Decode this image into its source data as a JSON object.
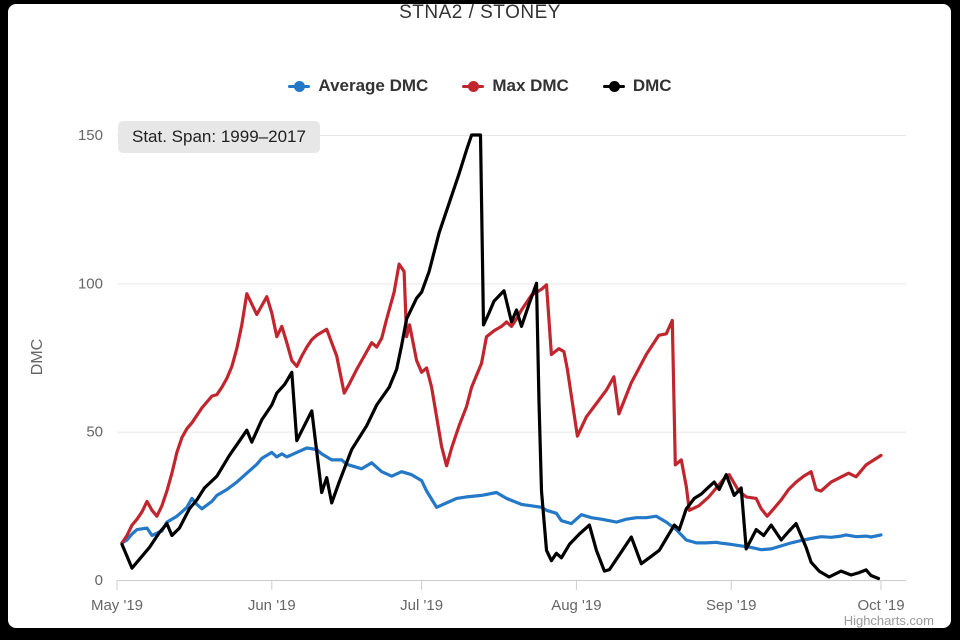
{
  "title": "STNA2 / STONEY",
  "stat_span_label": "Stat. Span: 1999–2017",
  "credits": "Highcharts.com",
  "colors": {
    "frame": "#000000",
    "background": "#ffffff",
    "grid": "#e6e6e6",
    "axis": "#cccccc",
    "tick_text": "#666666",
    "title_text": "#333333",
    "stat_label_bg": "#e7e7e7"
  },
  "chart_data": {
    "type": "line",
    "title": "STNA2 / STONEY",
    "xlabel": "",
    "ylabel": "DMC",
    "ylim": [
      0,
      150
    ],
    "y_ticks": [
      0,
      50,
      100,
      150
    ],
    "x_unit": "days since May 1 2019",
    "x_ticks": [
      {
        "day": 0,
        "label": "May '19"
      },
      {
        "day": 31,
        "label": "Jun '19"
      },
      {
        "day": 61,
        "label": "Jul '19"
      },
      {
        "day": 92,
        "label": "Aug '19"
      },
      {
        "day": 123,
        "label": "Sep '19"
      },
      {
        "day": 153,
        "label": "Oct '19"
      }
    ],
    "grid": "horizontal",
    "legend_position": "top",
    "series": [
      {
        "name": "Average DMC",
        "color": "#2478c8",
        "points": [
          [
            1,
            12.5
          ],
          [
            2,
            13.5
          ],
          [
            3,
            15.5
          ],
          [
            4,
            17
          ],
          [
            6,
            17.5
          ],
          [
            7,
            15
          ],
          [
            9,
            16.5
          ],
          [
            10,
            19.5
          ],
          [
            12,
            21.5
          ],
          [
            13,
            23
          ],
          [
            14,
            24.5
          ],
          [
            15,
            27.5
          ],
          [
            16,
            25.5
          ],
          [
            17,
            24
          ],
          [
            19,
            26.5
          ],
          [
            20,
            28.5
          ],
          [
            22,
            30.5
          ],
          [
            24,
            33
          ],
          [
            26,
            36
          ],
          [
            28,
            39
          ],
          [
            29,
            41
          ],
          [
            31,
            43
          ],
          [
            32,
            41.5
          ],
          [
            33,
            42.5
          ],
          [
            34,
            41.5
          ],
          [
            36,
            43
          ],
          [
            38,
            44.5
          ],
          [
            40,
            44
          ],
          [
            41,
            42.5
          ],
          [
            43,
            40.5
          ],
          [
            45,
            40.5
          ],
          [
            46,
            39
          ],
          [
            49,
            37.5
          ],
          [
            51,
            39.5
          ],
          [
            53,
            36.5
          ],
          [
            55,
            35
          ],
          [
            57,
            36.5
          ],
          [
            59,
            35.5
          ],
          [
            61,
            33.5
          ],
          [
            62,
            30
          ],
          [
            64,
            24.5
          ],
          [
            66,
            26
          ],
          [
            68,
            27.5
          ],
          [
            70,
            28
          ],
          [
            73,
            28.5
          ],
          [
            76,
            29.5
          ],
          [
            78,
            27.5
          ],
          [
            81,
            25.5
          ],
          [
            83,
            25
          ],
          [
            85,
            24.5
          ],
          [
            86,
            23.5
          ],
          [
            88,
            22.5
          ],
          [
            89,
            20
          ],
          [
            91,
            19
          ],
          [
            93,
            22
          ],
          [
            95,
            21
          ],
          [
            97,
            20.5
          ],
          [
            100,
            19.5
          ],
          [
            102,
            20.5
          ],
          [
            104,
            21
          ],
          [
            106,
            21
          ],
          [
            108,
            21.5
          ],
          [
            110,
            19.5
          ],
          [
            112,
            17
          ],
          [
            114,
            13.5
          ],
          [
            116,
            12.5
          ],
          [
            118,
            12.5
          ],
          [
            120,
            12.7
          ],
          [
            121,
            12.4
          ],
          [
            123,
            12
          ],
          [
            125,
            11.5
          ],
          [
            127,
            11
          ],
          [
            129,
            10.2
          ],
          [
            131,
            10.5
          ],
          [
            133,
            11.5
          ],
          [
            135,
            12.5
          ],
          [
            137,
            13.3
          ],
          [
            139,
            14
          ],
          [
            141,
            14.6
          ],
          [
            143,
            14.4
          ],
          [
            145,
            14.8
          ],
          [
            146,
            15.2
          ],
          [
            148,
            14.6
          ],
          [
            150,
            14.8
          ],
          [
            151,
            14.5
          ],
          [
            153,
            15.2
          ]
        ]
      },
      {
        "name": "Max DMC",
        "color": "#c1262e",
        "points": [
          [
            1,
            12.5
          ],
          [
            2,
            15
          ],
          [
            3,
            18.5
          ],
          [
            4,
            20.5
          ],
          [
            5,
            23
          ],
          [
            6,
            26.5
          ],
          [
            7,
            23.5
          ],
          [
            8,
            21.5
          ],
          [
            9,
            25
          ],
          [
            10,
            30
          ],
          [
            11,
            36
          ],
          [
            12,
            43
          ],
          [
            13,
            48
          ],
          [
            14,
            51
          ],
          [
            15,
            53
          ],
          [
            16,
            55.5
          ],
          [
            17,
            58
          ],
          [
            18,
            60
          ],
          [
            19,
            62
          ],
          [
            20,
            62.5
          ],
          [
            21,
            65
          ],
          [
            22,
            68
          ],
          [
            23,
            72
          ],
          [
            24,
            78
          ],
          [
            25,
            86
          ],
          [
            26,
            96.5
          ],
          [
            27,
            93
          ],
          [
            28,
            89.5
          ],
          [
            29,
            92.5
          ],
          [
            30,
            95.5
          ],
          [
            31,
            90
          ],
          [
            32,
            82
          ],
          [
            33,
            85.5
          ],
          [
            34,
            80
          ],
          [
            35,
            74
          ],
          [
            36,
            72
          ],
          [
            37,
            75.5
          ],
          [
            38,
            78.5
          ],
          [
            39,
            81
          ],
          [
            40,
            82.5
          ],
          [
            41,
            83.5
          ],
          [
            42,
            84.5
          ],
          [
            43,
            80
          ],
          [
            44,
            75.5
          ],
          [
            45.5,
            63
          ],
          [
            46.5,
            66
          ],
          [
            48,
            71
          ],
          [
            50,
            77
          ],
          [
            51,
            80
          ],
          [
            52,
            78.5
          ],
          [
            53,
            81.5
          ],
          [
            54,
            88
          ],
          [
            55.5,
            97
          ],
          [
            56.5,
            106.5
          ],
          [
            57.5,
            104
          ],
          [
            58,
            82
          ],
          [
            58.6,
            86
          ],
          [
            60,
            74
          ],
          [
            61,
            70
          ],
          [
            62,
            71.5
          ],
          [
            63,
            65
          ],
          [
            64,
            55
          ],
          [
            65,
            45
          ],
          [
            66,
            38.5
          ],
          [
            67,
            44.5
          ],
          [
            68.5,
            52
          ],
          [
            70,
            58.5
          ],
          [
            71,
            65
          ],
          [
            73,
            73
          ],
          [
            74,
            82
          ],
          [
            75.5,
            84
          ],
          [
            77,
            85.5
          ],
          [
            78,
            87
          ],
          [
            79,
            85.5
          ],
          [
            80,
            88
          ],
          [
            81,
            91
          ],
          [
            83,
            96
          ],
          [
            85,
            98
          ],
          [
            86,
            99.5
          ],
          [
            87,
            76
          ],
          [
            88.5,
            78
          ],
          [
            89.5,
            77
          ],
          [
            90.2,
            71
          ],
          [
            91,
            62
          ],
          [
            92.2,
            48.5
          ],
          [
            94,
            55
          ],
          [
            96,
            59.5
          ],
          [
            98,
            64
          ],
          [
            99.5,
            68.5
          ],
          [
            100.5,
            56
          ],
          [
            103,
            66.5
          ],
          [
            106,
            76
          ],
          [
            108.5,
            82.5
          ],
          [
            110,
            83
          ],
          [
            111.2,
            87.5
          ],
          [
            111.8,
            38.8
          ],
          [
            113,
            40.5
          ],
          [
            114,
            31.5
          ],
          [
            114.6,
            23.5
          ],
          [
            116.5,
            25
          ],
          [
            118.5,
            28
          ],
          [
            120.5,
            32
          ],
          [
            122,
            35
          ],
          [
            122.6,
            35.5
          ],
          [
            124.5,
            30
          ],
          [
            126,
            28
          ],
          [
            128,
            27.5
          ],
          [
            129,
            24
          ],
          [
            130.2,
            21.5
          ],
          [
            131.5,
            24
          ],
          [
            133,
            27
          ],
          [
            134.5,
            30.5
          ],
          [
            136,
            33
          ],
          [
            137.5,
            35
          ],
          [
            139,
            36.5
          ],
          [
            140,
            30.5
          ],
          [
            141,
            30
          ],
          [
            143,
            33
          ],
          [
            146.5,
            36
          ],
          [
            148,
            34.8
          ],
          [
            150,
            38.8
          ],
          [
            153,
            42
          ]
        ]
      },
      {
        "name": "DMC",
        "color": "#000000",
        "points": [
          [
            1,
            12
          ],
          [
            2,
            8
          ],
          [
            3,
            4
          ],
          [
            4.5,
            7
          ],
          [
            6.5,
            11
          ],
          [
            8.5,
            16
          ],
          [
            10,
            19
          ],
          [
            11,
            15
          ],
          [
            12.5,
            17.5
          ],
          [
            14.5,
            24
          ],
          [
            16,
            27
          ],
          [
            17.5,
            31
          ],
          [
            20,
            35
          ],
          [
            22.5,
            42
          ],
          [
            25,
            48
          ],
          [
            26,
            50.5
          ],
          [
            27,
            46.5
          ],
          [
            29,
            54
          ],
          [
            31,
            59
          ],
          [
            32,
            63
          ],
          [
            33.6,
            66
          ],
          [
            35,
            70
          ],
          [
            36,
            47
          ],
          [
            37.5,
            52
          ],
          [
            39,
            57
          ],
          [
            41,
            29.5
          ],
          [
            42,
            34.5
          ],
          [
            43,
            26
          ],
          [
            44.5,
            33
          ],
          [
            47,
            44
          ],
          [
            50,
            52
          ],
          [
            52,
            59
          ],
          [
            54.5,
            65
          ],
          [
            56,
            71
          ],
          [
            57,
            79
          ],
          [
            58,
            88
          ],
          [
            60,
            95
          ],
          [
            61,
            97
          ],
          [
            62.5,
            104
          ],
          [
            64.5,
            117
          ],
          [
            66.5,
            127
          ],
          [
            68.5,
            137
          ],
          [
            70,
            145
          ],
          [
            71,
            150
          ],
          [
            72.8,
            150
          ],
          [
            73.4,
            86
          ],
          [
            74.5,
            90
          ],
          [
            75.5,
            94
          ],
          [
            77.5,
            97.5
          ],
          [
            79,
            87
          ],
          [
            80,
            91
          ],
          [
            81,
            85.5
          ],
          [
            82.5,
            93
          ],
          [
            84,
            100
          ],
          [
            84.5,
            60
          ],
          [
            85,
            30
          ],
          [
            86,
            10
          ],
          [
            87,
            6.5
          ],
          [
            88,
            9
          ],
          [
            89,
            7.5
          ],
          [
            90.6,
            12
          ],
          [
            92.6,
            15.5
          ],
          [
            94.6,
            18.5
          ],
          [
            96,
            10
          ],
          [
            97.6,
            3
          ],
          [
            98.6,
            3.5
          ],
          [
            100.6,
            8.5
          ],
          [
            103,
            14.5
          ],
          [
            105,
            5.5
          ],
          [
            107,
            8
          ],
          [
            108.6,
            10
          ],
          [
            110,
            14
          ],
          [
            111.6,
            18.5
          ],
          [
            112.6,
            17
          ],
          [
            114,
            24
          ],
          [
            115.6,
            27.5
          ],
          [
            117,
            29
          ],
          [
            118.6,
            31.5
          ],
          [
            119.6,
            33
          ],
          [
            120.6,
            30.5
          ],
          [
            122,
            35.5
          ],
          [
            123.6,
            28.5
          ],
          [
            125,
            31
          ],
          [
            126,
            10.5
          ],
          [
            128,
            17
          ],
          [
            129.5,
            15
          ],
          [
            131,
            18.5
          ],
          [
            133,
            13.5
          ],
          [
            134.6,
            16.5
          ],
          [
            136,
            19
          ],
          [
            138,
            11
          ],
          [
            139,
            6
          ],
          [
            140.6,
            3
          ],
          [
            142.6,
            1
          ],
          [
            145,
            3
          ],
          [
            147,
            1.7
          ],
          [
            148.6,
            2.5
          ],
          [
            150,
            3.4
          ],
          [
            151,
            1.5
          ],
          [
            152.5,
            0.5
          ]
        ]
      }
    ]
  }
}
